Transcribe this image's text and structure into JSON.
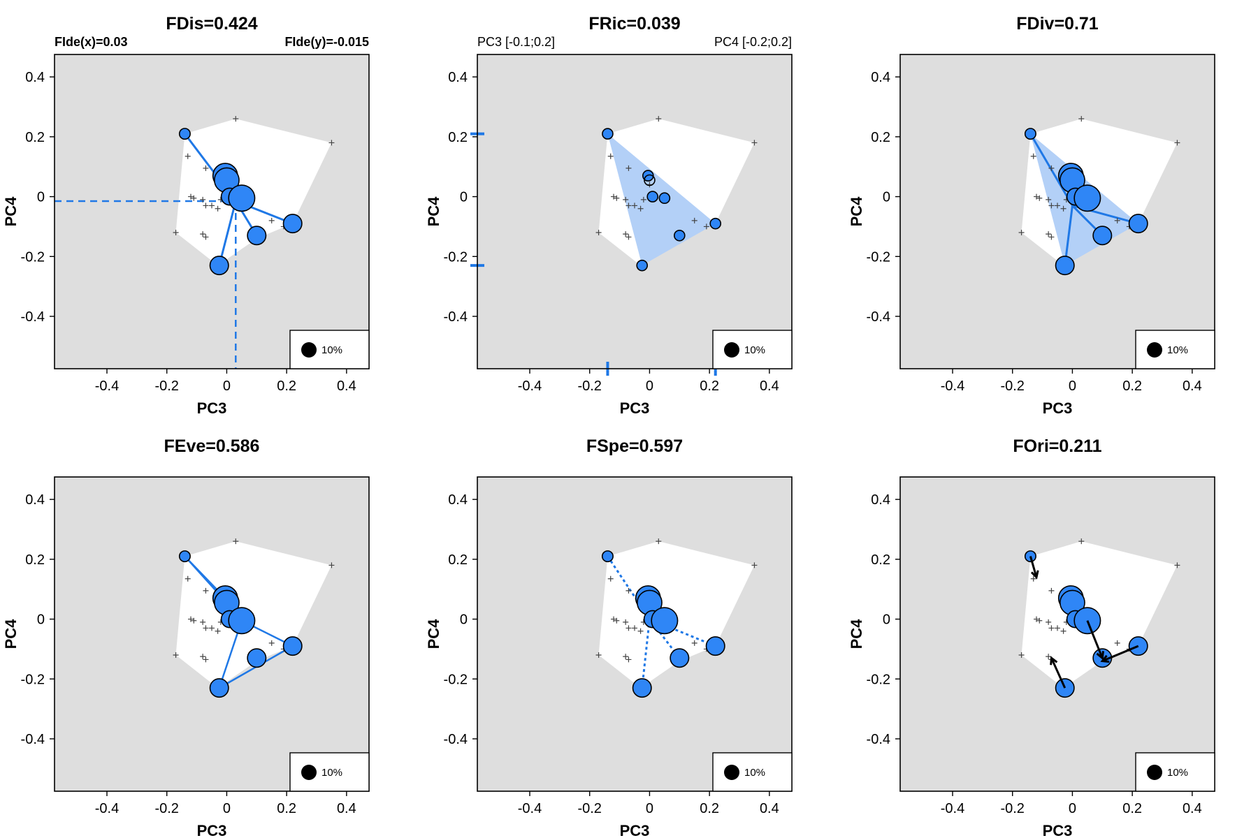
{
  "colors": {
    "background": "#dedede",
    "hull": "#ffffff",
    "accent": "#1f78e6",
    "point_fill": "#2f86f6",
    "fill_light": "#b3d0f7",
    "black": "#000000"
  },
  "chart_data": [
    {
      "type": "scatter",
      "title": "FDis=0.424",
      "xlabel": "PC3",
      "ylabel": "PC4",
      "corner_left": "FIde(x)=0.03",
      "corner_right": "FIde(y)=-0.015",
      "xlim": [
        -0.575,
        0.475
      ],
      "ylim": [
        -0.575,
        0.475
      ],
      "xticks": [
        "-0.4",
        "-0.2",
        "0",
        "0.2",
        "0.4"
      ],
      "yticks": [
        "-0.4",
        "-0.2",
        "0",
        "0.2",
        "0.4"
      ],
      "legend_label": "10%",
      "legend_position": "bottom-right",
      "variant": "dispersion",
      "centroid": [
        0.03,
        -0.015
      ]
    },
    {
      "type": "scatter",
      "title": "FRic=0.039",
      "xlabel": "PC3",
      "ylabel": "PC4",
      "corner_left": "PC3 [-0.1;0.2]",
      "corner_right": "PC4 [-0.2;0.2]",
      "xlim": [
        -0.575,
        0.475
      ],
      "ylim": [
        -0.575,
        0.475
      ],
      "xticks": [
        "-0.4",
        "-0.2",
        "0",
        "0.2",
        "0.4"
      ],
      "yticks": [
        "-0.4",
        "-0.2",
        "0",
        "0.2",
        "0.4"
      ],
      "legend_label": "10%",
      "legend_position": "bottom-right",
      "variant": "richness",
      "x_range_marks": [
        -0.14,
        0.22
      ],
      "y_range_marks": [
        0.21,
        -0.23
      ]
    },
    {
      "type": "scatter",
      "title": "FDiv=0.71",
      "xlabel": "PC3",
      "ylabel": "PC4",
      "xlim": [
        -0.575,
        0.475
      ],
      "ylim": [
        -0.575,
        0.475
      ],
      "xticks": [
        "-0.4",
        "-0.2",
        "0",
        "0.2",
        "0.4"
      ],
      "yticks": [
        "-0.4",
        "-0.2",
        "0",
        "0.2",
        "0.4"
      ],
      "legend_label": "10%",
      "legend_position": "bottom-right",
      "variant": "divergence",
      "centroid": [
        0.0,
        -0.03
      ]
    },
    {
      "type": "scatter",
      "title": "FEve=0.586",
      "xlabel": "PC3",
      "ylabel": "PC4",
      "xlim": [
        -0.575,
        0.475
      ],
      "ylim": [
        -0.575,
        0.475
      ],
      "xticks": [
        "-0.4",
        "-0.2",
        "0",
        "0.2",
        "0.4"
      ],
      "yticks": [
        "-0.4",
        "-0.2",
        "0",
        "0.2",
        "0.4"
      ],
      "legend_label": "10%",
      "legend_position": "bottom-right",
      "variant": "evenness",
      "mst_edges": [
        [
          0,
          2
        ],
        [
          1,
          2
        ],
        [
          2,
          4
        ],
        [
          3,
          4
        ],
        [
          4,
          6
        ],
        [
          5,
          6
        ],
        [
          0,
          1
        ],
        [
          4,
          5
        ]
      ]
    },
    {
      "type": "scatter",
      "title": "FSpe=0.597",
      "xlabel": "PC3",
      "ylabel": "PC4",
      "xlim": [
        -0.575,
        0.475
      ],
      "ylim": [
        -0.575,
        0.475
      ],
      "xticks": [
        "-0.4",
        "-0.2",
        "0",
        "0.2",
        "0.4"
      ],
      "yticks": [
        "-0.4",
        "-0.2",
        "0",
        "0.2",
        "0.4"
      ],
      "legend_label": "10%",
      "legend_position": "bottom-right",
      "variant": "specialization",
      "centroid": [
        0.0,
        0.0
      ]
    },
    {
      "type": "scatter",
      "title": "FOri=0.211",
      "xlabel": "PC3",
      "ylabel": "PC4",
      "xlim": [
        -0.575,
        0.475
      ],
      "ylim": [
        -0.575,
        0.475
      ],
      "xticks": [
        "-0.4",
        "-0.2",
        "0",
        "0.2",
        "0.4"
      ],
      "yticks": [
        "-0.4",
        "-0.2",
        "0",
        "0.2",
        "0.4"
      ],
      "legend_label": "10%",
      "legend_position": "bottom-right",
      "variant": "originality",
      "arrows": [
        [
          0.0,
          [
            -0.12,
            0.14
          ]
        ],
        [
          6.0,
          [
            -0.07,
            -0.13
          ]
        ],
        [
          4.0,
          [
            0.1,
            -0.13
          ]
        ],
        [
          5.0,
          [
            0.1,
            -0.14
          ]
        ]
      ]
    }
  ],
  "shared": {
    "hull": [
      [
        0.03,
        0.26
      ],
      [
        0.35,
        0.18
      ],
      [
        0.22,
        -0.09
      ],
      [
        0.1,
        -0.14
      ],
      [
        -0.03,
        -0.23
      ],
      [
        -0.17,
        -0.12
      ],
      [
        -0.14,
        0.21
      ]
    ],
    "species": [
      [
        -0.14,
        0.21,
        1.4
      ],
      [
        -0.005,
        0.07,
        3.2
      ],
      [
        0.0,
        0.055,
        3.2
      ],
      [
        0.01,
        0.0,
        2.2
      ],
      [
        0.05,
        -0.005,
        3.4
      ],
      [
        0.22,
        -0.09,
        2.4
      ],
      [
        -0.025,
        -0.23,
        2.4
      ],
      [
        0.1,
        -0.13,
        2.4
      ]
    ],
    "crosses": [
      [
        0.03,
        0.26
      ],
      [
        0.35,
        0.18
      ],
      [
        -0.13,
        0.135
      ],
      [
        -0.07,
        0.095
      ],
      [
        -0.12,
        0.0
      ],
      [
        -0.11,
        -0.005
      ],
      [
        -0.08,
        -0.01
      ],
      [
        -0.07,
        -0.03
      ],
      [
        -0.05,
        -0.03
      ],
      [
        -0.03,
        -0.04
      ],
      [
        -0.02,
        -0.01
      ],
      [
        0.15,
        -0.08
      ],
      [
        0.19,
        -0.1
      ],
      [
        -0.17,
        -0.12
      ],
      [
        -0.08,
        -0.125
      ],
      [
        -0.07,
        -0.135
      ],
      [
        -0.14,
        0.21
      ],
      [
        0.0,
        0.04
      ]
    ]
  }
}
